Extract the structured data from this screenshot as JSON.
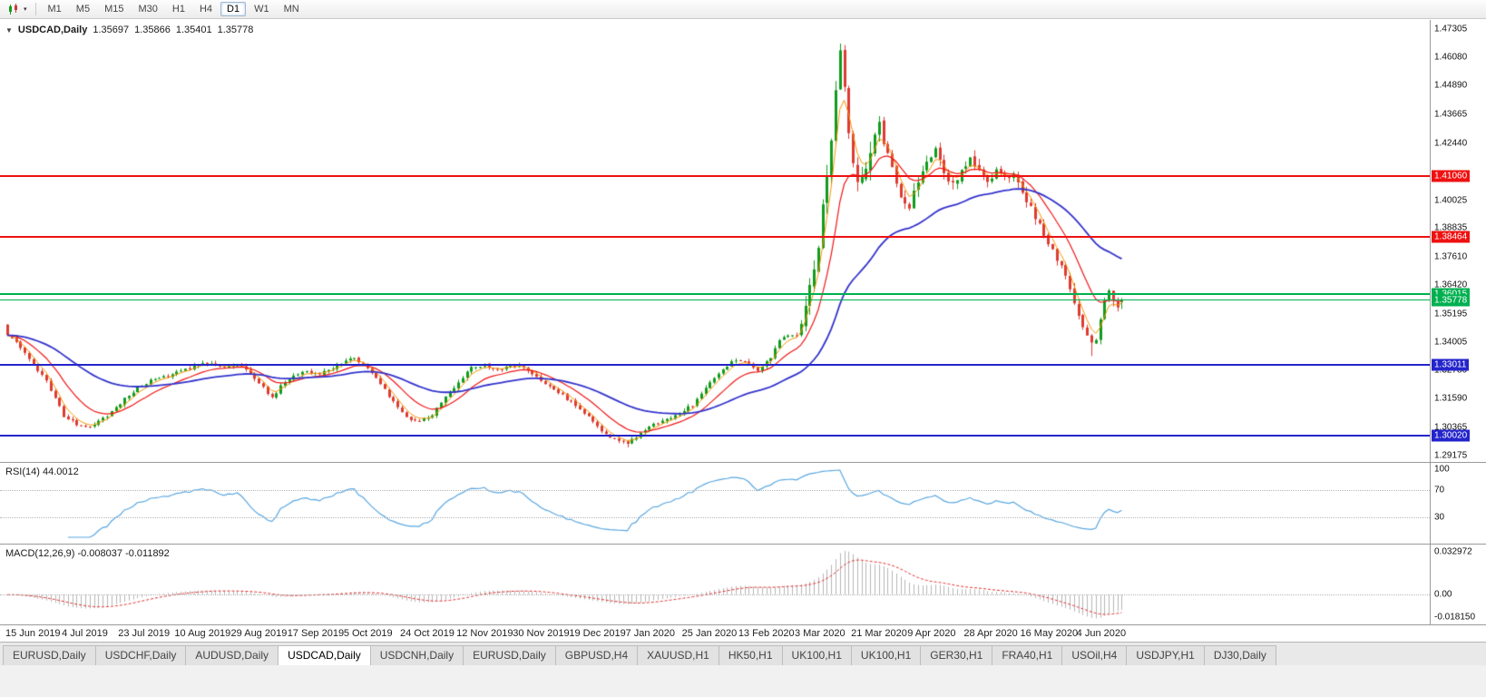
{
  "icons": {
    "collapse": "▼",
    "caret": "▾"
  },
  "toolbar": {
    "timeframes": [
      "M1",
      "M5",
      "M15",
      "M30",
      "H1",
      "H4",
      "D1",
      "W1",
      "MN"
    ],
    "active": "D1"
  },
  "header": {
    "symbol": "USDCAD,Daily",
    "open": "1.35697",
    "high": "1.35866",
    "low": "1.35401",
    "close": "1.35778"
  },
  "price_axis": {
    "max": 1.4768,
    "min": 1.289,
    "ticks": [
      "1.47305",
      "1.46080",
      "1.44890",
      "1.43665",
      "1.42440",
      "1.40025",
      "1.38835",
      "1.37610",
      "1.36420",
      "1.35195",
      "1.34005",
      "1.32780",
      "1.31590",
      "1.30365",
      "1.29175"
    ]
  },
  "levels": [
    {
      "price": 1.4106,
      "label": "1.41060",
      "color": "#ee1111",
      "width": 2
    },
    {
      "price": 1.38464,
      "label": "1.38464",
      "color": "#ee1111",
      "width": 2
    },
    {
      "price": 1.36015,
      "label": "1.36015",
      "color": "#00b050",
      "width": 2
    },
    {
      "price": 1.35778,
      "label": "1.35778",
      "color": "#00b050",
      "width": 1
    },
    {
      "price": 1.33011,
      "label": "1.33011",
      "color": "#2424cc",
      "width": 2
    },
    {
      "price": 1.3002,
      "label": "1.30020",
      "color": "#2424cc",
      "width": 2
    }
  ],
  "rsi": {
    "label": "RSI(14) 44.0012",
    "period": 14,
    "color": "#58a6e0",
    "axis": [
      {
        "value": 100,
        "label": "100"
      },
      {
        "value": 70,
        "label": "70"
      },
      {
        "value": 30,
        "label": "30"
      }
    ],
    "guide_levels": [
      70,
      30
    ]
  },
  "macd": {
    "label": "MACD(12,26,9) -0.008037 -0.011892",
    "fast": 12,
    "slow": 26,
    "signal": 9,
    "hist_color": "#b6b6b6",
    "signal_color": "#e03030",
    "axis_labels": [
      "0.032972",
      "0.00",
      "-0.018150"
    ]
  },
  "time_axis": {
    "step": 13,
    "labels": [
      "15 Jun 2019",
      "4 Jul 2019",
      "23 Jul 2019",
      "10 Aug 2019",
      "29 Aug 2019",
      "17 Sep 2019",
      "5 Oct 2019",
      "24 Oct 2019",
      "12 Nov 2019",
      "30 Nov 2019",
      "19 Dec 2019",
      "7 Jan 2020",
      "25 Jan 2020",
      "13 Feb 2020",
      "3 Mar 2020",
      "21 Mar 2020",
      "9 Apr 2020",
      "28 Apr 2020",
      "16 May 2020",
      "4 Jun 2020"
    ]
  },
  "tabs": {
    "active_index": 3,
    "items": [
      "EURUSD,Daily",
      "USDCHF,Daily",
      "AUDUSD,Daily",
      "USDCAD,Daily",
      "USDCNH,Daily",
      "EURUSD,Daily",
      "GBPUSD,H4",
      "XAUUSD,H1",
      "HK50,H1",
      "UK100,H1",
      "UK100,H1",
      "GER30,H1",
      "FRA40,H1",
      "USOil,H4",
      "USDJPY,H1",
      "DJ30,Daily"
    ]
  },
  "colors": {
    "candle_up": "#119c1d",
    "candle_down": "#dd3b33"
  },
  "chart_data": {
    "type": "candlestick",
    "symbol": "USDCAD",
    "timeframe": "Daily",
    "bar_count": 258,
    "first_bar_x": 8,
    "bar_spacing": 4.78,
    "ylim": [
      1.289,
      1.4768
    ],
    "ma_lines": [
      {
        "period": 4,
        "color": "#f59300",
        "width": 1
      },
      {
        "period": 12,
        "color": "#f01616",
        "width": 1.2
      },
      {
        "period": 40,
        "color": "#3333cc",
        "width": 1.8
      }
    ],
    "last_bar": {
      "o": 1.35697,
      "h": 1.35866,
      "l": 1.35401,
      "c": 1.35778
    },
    "extremes": [
      {
        "i": 192,
        "high": 1.4668
      },
      {
        "i": 143,
        "low": 1.2952
      },
      {
        "i": 250,
        "low": 1.334
      }
    ],
    "close_anchors": [
      [
        0,
        1.3435
      ],
      [
        3,
        1.338
      ],
      [
        6,
        1.3305
      ],
      [
        9,
        1.3235
      ],
      [
        13,
        1.3085
      ],
      [
        16,
        1.305
      ],
      [
        19,
        1.3042
      ],
      [
        23,
        1.3088
      ],
      [
        26,
        1.314
      ],
      [
        30,
        1.3205
      ],
      [
        34,
        1.3248
      ],
      [
        38,
        1.3262
      ],
      [
        42,
        1.3288
      ],
      [
        46,
        1.3312
      ],
      [
        50,
        1.3292
      ],
      [
        54,
        1.3302
      ],
      [
        58,
        1.3225
      ],
      [
        61,
        1.3165
      ],
      [
        64,
        1.3232
      ],
      [
        68,
        1.3272
      ],
      [
        72,
        1.3262
      ],
      [
        75,
        1.3292
      ],
      [
        78,
        1.3322
      ],
      [
        80,
        1.3332
      ],
      [
        83,
        1.3292
      ],
      [
        86,
        1.3225
      ],
      [
        89,
        1.3145
      ],
      [
        92,
        1.3075
      ],
      [
        95,
        1.3058
      ],
      [
        98,
        1.3092
      ],
      [
        101,
        1.3162
      ],
      [
        104,
        1.3232
      ],
      [
        107,
        1.3292
      ],
      [
        110,
        1.3302
      ],
      [
        113,
        1.3282
      ],
      [
        116,
        1.3302
      ],
      [
        119,
        1.3292
      ],
      [
        122,
        1.3252
      ],
      [
        125,
        1.3212
      ],
      [
        128,
        1.3172
      ],
      [
        131,
        1.3132
      ],
      [
        134,
        1.3082
      ],
      [
        137,
        1.3022
      ],
      [
        140,
        1.2982
      ],
      [
        143,
        1.2968
      ],
      [
        146,
        1.3012
      ],
      [
        149,
        1.3052
      ],
      [
        152,
        1.3072
      ],
      [
        155,
        1.3098
      ],
      [
        158,
        1.3132
      ],
      [
        161,
        1.3202
      ],
      [
        164,
        1.3268
      ],
      [
        167,
        1.3312
      ],
      [
        170,
        1.3322
      ],
      [
        173,
        1.3282
      ],
      [
        176,
        1.3332
      ],
      [
        178,
        1.3402
      ],
      [
        180,
        1.3432
      ],
      [
        182,
        1.3422
      ],
      [
        184,
        1.3532
      ],
      [
        186,
        1.3702
      ],
      [
        188,
        1.3952
      ],
      [
        190,
        1.4252
      ],
      [
        191,
        1.4502
      ],
      [
        192,
        1.4622
      ],
      [
        193,
        1.4452
      ],
      [
        194,
        1.4302
      ],
      [
        195,
        1.4152
      ],
      [
        196,
        1.4052
      ],
      [
        198,
        1.4122
      ],
      [
        200,
        1.4282
      ],
      [
        201,
        1.4342
      ],
      [
        202,
        1.4252
      ],
      [
        204,
        1.4142
      ],
      [
        206,
        1.4012
      ],
      [
        208,
        1.3982
      ],
      [
        210,
        1.4082
      ],
      [
        212,
        1.4152
      ],
      [
        214,
        1.4222
      ],
      [
        216,
        1.4122
      ],
      [
        218,
        1.4062
      ],
      [
        220,
        1.4142
      ],
      [
        222,
        1.4182
      ],
      [
        224,
        1.4122
      ],
      [
        226,
        1.4082
      ],
      [
        228,
        1.4132
      ],
      [
        230,
        1.4092
      ],
      [
        232,
        1.4102
      ],
      [
        234,
        1.4032
      ],
      [
        236,
        1.3972
      ],
      [
        238,
        1.3892
      ],
      [
        240,
        1.3822
      ],
      [
        242,
        1.3752
      ],
      [
        244,
        1.3682
      ],
      [
        246,
        1.3562
      ],
      [
        248,
        1.3452
      ],
      [
        250,
        1.3392
      ],
      [
        251,
        1.3422
      ],
      [
        252,
        1.3482
      ],
      [
        253,
        1.3562
      ],
      [
        254,
        1.3622
      ],
      [
        255,
        1.3582
      ],
      [
        256,
        1.3542
      ],
      [
        257,
        1.35778
      ]
    ]
  }
}
